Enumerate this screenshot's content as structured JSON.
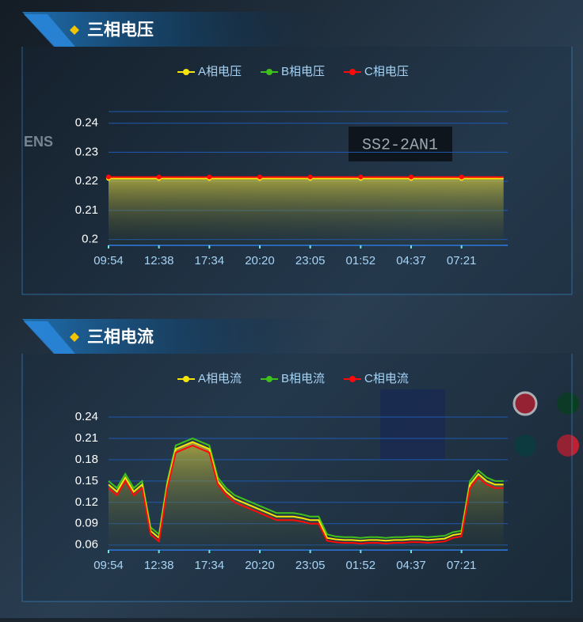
{
  "photo_labels": [
    "SS2-2AN1",
    "ENS"
  ],
  "chart_data": [
    {
      "type": "line",
      "title": "三相电压",
      "markers": true,
      "area": true,
      "categories": [
        "09:54",
        null,
        null,
        null,
        null,
        null,
        "12:38",
        null,
        null,
        null,
        null,
        null,
        "17:34",
        null,
        null,
        null,
        null,
        null,
        "20:20",
        null,
        null,
        null,
        null,
        null,
        "23:05",
        null,
        null,
        null,
        null,
        null,
        "01:52",
        null,
        null,
        null,
        null,
        null,
        "04:37",
        null,
        null,
        null,
        null,
        null,
        "07:21",
        null,
        null,
        null,
        null,
        null
      ],
      "ylim": [
        0.198,
        0.244
      ],
      "yticks": [
        0.2,
        0.21,
        0.22,
        0.23,
        0.24
      ],
      "grid": true,
      "series": [
        {
          "name": "A相电压",
          "color": "#f5e50a",
          "values": [
            0.221,
            0.221,
            0.221,
            0.221,
            0.221,
            0.221,
            0.221,
            0.221,
            0.221,
            0.221,
            0.221,
            0.221,
            0.221,
            0.221,
            0.221,
            0.221,
            0.221,
            0.221,
            0.221,
            0.221,
            0.221,
            0.221,
            0.221,
            0.221,
            0.221,
            0.221,
            0.221,
            0.221,
            0.221,
            0.221,
            0.221,
            0.221,
            0.221,
            0.221,
            0.221,
            0.221,
            0.221,
            0.221,
            0.221,
            0.221,
            0.221,
            0.221,
            0.221,
            0.221,
            0.221,
            0.221,
            0.221,
            0.221
          ]
        },
        {
          "name": "B相电压",
          "color": "#3fc01c",
          "values": [
            0.2212,
            0.2212,
            0.2212,
            0.2212,
            0.2212,
            0.2212,
            0.2212,
            0.2212,
            0.2212,
            0.2212,
            0.2212,
            0.2212,
            0.2212,
            0.2212,
            0.2212,
            0.2212,
            0.2212,
            0.2212,
            0.2212,
            0.2212,
            0.2212,
            0.2212,
            0.2212,
            0.2212,
            0.2212,
            0.2212,
            0.2212,
            0.2212,
            0.2212,
            0.2212,
            0.2212,
            0.2212,
            0.2212,
            0.2212,
            0.2212,
            0.2212,
            0.2212,
            0.2212,
            0.2212,
            0.2212,
            0.2212,
            0.2212,
            0.2212,
            0.2212,
            0.2212,
            0.2212,
            0.2212,
            0.2212
          ]
        },
        {
          "name": "C相电压",
          "color": "#ff0a0a",
          "values": [
            0.2215,
            0.2215,
            0.2215,
            0.2215,
            0.2215,
            0.2215,
            0.2215,
            0.2215,
            0.2215,
            0.2215,
            0.2215,
            0.2215,
            0.2215,
            0.2215,
            0.2215,
            0.2215,
            0.2215,
            0.2215,
            0.2215,
            0.2215,
            0.2215,
            0.2215,
            0.2215,
            0.2215,
            0.2215,
            0.2215,
            0.2215,
            0.2215,
            0.2215,
            0.2215,
            0.2215,
            0.2215,
            0.2215,
            0.2215,
            0.2215,
            0.2215,
            0.2215,
            0.2215,
            0.2215,
            0.2215,
            0.2215,
            0.2215,
            0.2215,
            0.2215,
            0.2215,
            0.2215,
            0.2215,
            0.2215
          ]
        }
      ]
    },
    {
      "type": "line",
      "title": "三相电流",
      "markers": false,
      "area": true,
      "categories": [
        "09:54",
        null,
        null,
        null,
        null,
        null,
        "12:38",
        null,
        null,
        null,
        null,
        null,
        "17:34",
        null,
        null,
        null,
        null,
        null,
        "20:20",
        null,
        null,
        null,
        null,
        null,
        "23:05",
        null,
        null,
        null,
        null,
        null,
        "01:52",
        null,
        null,
        null,
        null,
        null,
        "04:37",
        null,
        null,
        null,
        null,
        null,
        "07:21",
        null,
        null,
        null,
        null,
        null
      ],
      "ylim": [
        0.053,
        0.24
      ],
      "yticks": [
        0.06,
        0.09,
        0.12,
        0.15,
        0.18,
        0.21,
        0.24
      ],
      "grid": true,
      "series": [
        {
          "name": "A相电流",
          "color": "#f5e50a",
          "values": [
            0.145,
            0.135,
            0.155,
            0.135,
            0.145,
            0.08,
            0.07,
            0.145,
            0.195,
            0.2,
            0.205,
            0.2,
            0.195,
            0.15,
            0.135,
            0.125,
            0.12,
            0.115,
            0.11,
            0.105,
            0.1,
            0.1,
            0.1,
            0.098,
            0.095,
            0.095,
            0.07,
            0.068,
            0.067,
            0.067,
            0.066,
            0.067,
            0.067,
            0.066,
            0.067,
            0.067,
            0.068,
            0.068,
            0.067,
            0.068,
            0.069,
            0.074,
            0.076,
            0.145,
            0.16,
            0.15,
            0.145,
            0.145
          ]
        },
        {
          "name": "B相电流",
          "color": "#3fc01c",
          "values": [
            0.15,
            0.14,
            0.16,
            0.14,
            0.15,
            0.085,
            0.075,
            0.15,
            0.2,
            0.205,
            0.21,
            0.205,
            0.2,
            0.155,
            0.14,
            0.13,
            0.125,
            0.12,
            0.115,
            0.11,
            0.105,
            0.105,
            0.105,
            0.103,
            0.1,
            0.1,
            0.075,
            0.072,
            0.071,
            0.071,
            0.07,
            0.071,
            0.071,
            0.07,
            0.071,
            0.071,
            0.072,
            0.072,
            0.071,
            0.072,
            0.073,
            0.078,
            0.08,
            0.15,
            0.165,
            0.155,
            0.15,
            0.15
          ]
        },
        {
          "name": "C相电流",
          "color": "#ff0a0a",
          "values": [
            0.14,
            0.13,
            0.15,
            0.13,
            0.14,
            0.075,
            0.065,
            0.14,
            0.19,
            0.195,
            0.2,
            0.195,
            0.19,
            0.145,
            0.13,
            0.12,
            0.115,
            0.11,
            0.105,
            0.1,
            0.095,
            0.095,
            0.095,
            0.093,
            0.09,
            0.09,
            0.066,
            0.064,
            0.063,
            0.063,
            0.062,
            0.063,
            0.063,
            0.062,
            0.063,
            0.063,
            0.064,
            0.064,
            0.063,
            0.064,
            0.065,
            0.07,
            0.072,
            0.14,
            0.155,
            0.145,
            0.14,
            0.14
          ]
        }
      ]
    }
  ]
}
